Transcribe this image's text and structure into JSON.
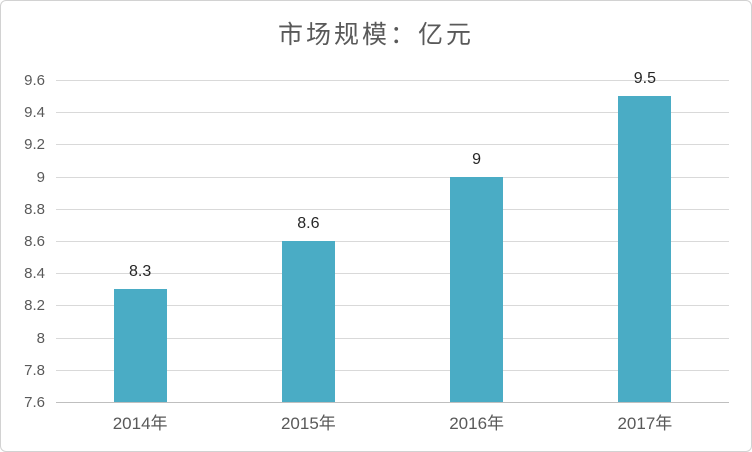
{
  "chart_data": {
    "type": "bar",
    "title": "市场规模：亿元",
    "categories": [
      "2014年",
      "2015年",
      "2016年",
      "2017年"
    ],
    "values": [
      8.3,
      8.6,
      9,
      9.5
    ],
    "data_labels": [
      "8.3",
      "8.6",
      "9",
      "9.5"
    ],
    "xlabel": "",
    "ylabel": "",
    "ylim": [
      7.6,
      9.6
    ],
    "ytick_step": 0.2,
    "ytick_labels_top_to_bottom": [
      "9.6",
      "9.4",
      "9.2",
      "9",
      "8.8",
      "8.6",
      "8.4",
      "8.2",
      "8",
      "7.8",
      "7.6"
    ],
    "grid": true,
    "legend_position": "none",
    "bar_color": "#4aacc5",
    "gridline_color": "#d9d9d9",
    "axis_line_color": "#bfbfbf",
    "title_color": "#595959",
    "tick_label_color": "#595959",
    "data_label_color": "#262626"
  }
}
